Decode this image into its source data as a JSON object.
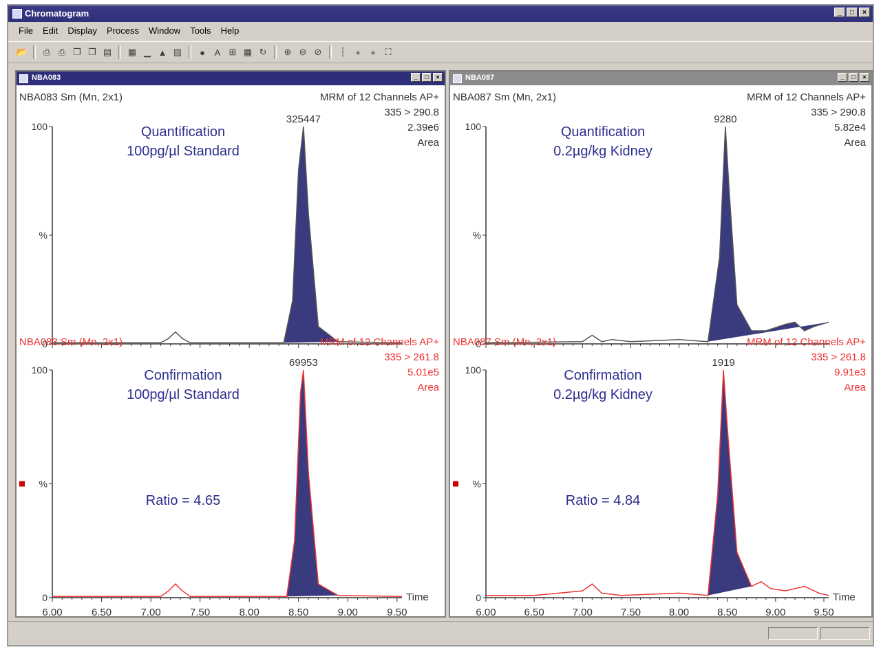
{
  "window": {
    "title": "Chromatogram"
  },
  "menu": [
    "File",
    "Edit",
    "Display",
    "Process",
    "Window",
    "Tools",
    "Help"
  ],
  "toolbar": {
    "icons": [
      "open-icon",
      "print-icon",
      "print-preview-icon",
      "copy-icon",
      "copy-alt-icon",
      "paste-icon",
      "export-icon",
      "chart-icon",
      "peak-icon",
      "stack-icon",
      "color-icon",
      "text-icon",
      "layout-icon",
      "grid-icon",
      "rotate-icon",
      "zoom-in-icon",
      "zoom-out-icon",
      "zoom-reset-icon",
      "separator-icon",
      "point-icon",
      "point-alt-icon",
      "fit-icon"
    ]
  },
  "colors": {
    "peak_fill": "#3a3a7e",
    "trace_black": "#555555",
    "trace_red": "#ee3333",
    "title_text": "#2e2e8e",
    "active_title": "#2e2e7a",
    "inactive_title": "#8c8c8c"
  },
  "windows": [
    {
      "id": "left",
      "title": "NBA083",
      "active": true,
      "panels": [
        {
          "header_left": "NBA083 Sm (Mn, 2x1)",
          "header_right": "MRM of 12 Channels AP+",
          "transition": "335 > 290.8",
          "total": "2.39e6",
          "mode": "Area",
          "peak_label": "325447",
          "title_line1": "Quantification",
          "title_line2": "100pg/µl Standard",
          "ratio": "",
          "red": false
        },
        {
          "header_left": "NBA083 Sm (Mn, 2x1)",
          "header_right": "MRM of 12 Channels AP+",
          "transition": "335 > 261.8",
          "total": "5.01e5",
          "mode": "Area",
          "peak_label": "69953",
          "title_line1": "Confirmation",
          "title_line2": "100pg/µl Standard",
          "ratio": "Ratio = 4.65",
          "red": true
        }
      ]
    },
    {
      "id": "right",
      "title": "NBA087",
      "active": false,
      "panels": [
        {
          "header_left": "NBA087 Sm (Mn, 2x1)",
          "header_right": "MRM of 12 Channels AP+",
          "transition": "335 > 290.8",
          "total": "5.82e4",
          "mode": "Area",
          "peak_label": "9280",
          "title_line1": "Quantification",
          "title_line2": "0.2µg/kg Kidney",
          "ratio": "",
          "red": false
        },
        {
          "header_left": "NBA087 Sm (Mn, 2x1)",
          "header_right": "MRM of 12 Channels AP+",
          "transition": "335 > 261.8",
          "total": "9.91e3",
          "mode": "Area",
          "peak_label": "1919",
          "title_line1": "Confirmation",
          "title_line2": "0.2µg/kg Kidney",
          "ratio": "Ratio = 4.84",
          "red": true
        }
      ]
    }
  ],
  "axis": {
    "y_ticks": [
      "100",
      "%",
      "0"
    ],
    "x_ticks": [
      "6.00",
      "6.50",
      "7.00",
      "7.50",
      "8.00",
      "8.50",
      "9.00",
      "9.50"
    ],
    "x_label": "Time"
  },
  "chart_data": [
    {
      "type": "line",
      "title": "NBA083 335 > 290.8",
      "xlim": [
        6.0,
        9.55
      ],
      "ylim": [
        0,
        100
      ],
      "x": [
        6.0,
        7.1,
        7.18,
        7.25,
        7.32,
        7.4,
        8.35,
        8.44,
        8.5,
        8.55,
        8.6,
        8.7,
        8.9,
        9.55
      ],
      "y": [
        0.5,
        0.5,
        2.5,
        5.5,
        2.5,
        0.5,
        0.5,
        20,
        80,
        100,
        60,
        8,
        1,
        0.5
      ]
    },
    {
      "type": "line",
      "title": "NBA083 335 > 261.8",
      "xlim": [
        6.0,
        9.55
      ],
      "ylim": [
        0,
        100
      ],
      "x": [
        6.0,
        7.1,
        7.18,
        7.25,
        7.32,
        7.4,
        8.38,
        8.46,
        8.52,
        8.55,
        8.6,
        8.7,
        8.9,
        9.55
      ],
      "y": [
        0.5,
        0.5,
        3,
        6,
        3,
        0.5,
        0.5,
        25,
        90,
        100,
        55,
        6,
        1,
        0.5
      ]
    },
    {
      "type": "line",
      "title": "NBA087 335 > 290.8",
      "xlim": [
        6.0,
        9.55
      ],
      "ylim": [
        0,
        100
      ],
      "x": [
        6.0,
        7.0,
        7.1,
        7.2,
        7.3,
        7.5,
        8.0,
        8.3,
        8.42,
        8.48,
        8.52,
        8.6,
        8.75,
        8.9,
        9.1,
        9.2,
        9.3,
        9.4,
        9.55
      ],
      "y": [
        0.5,
        1,
        4,
        1,
        2,
        1,
        2,
        1,
        40,
        100,
        70,
        18,
        6,
        6,
        9,
        10,
        6,
        8,
        10
      ]
    },
    {
      "type": "line",
      "title": "NBA087 335 > 261.8",
      "xlim": [
        6.0,
        9.55
      ],
      "ylim": [
        0,
        100
      ],
      "x": [
        6.0,
        6.5,
        7.0,
        7.1,
        7.2,
        7.4,
        8.0,
        8.3,
        8.4,
        8.46,
        8.5,
        8.6,
        8.75,
        8.85,
        8.95,
        9.1,
        9.3,
        9.45,
        9.55
      ],
      "y": [
        1,
        1,
        3,
        6,
        2,
        1,
        2,
        1,
        45,
        100,
        75,
        20,
        5,
        7,
        4,
        3,
        5,
        2,
        1
      ]
    }
  ]
}
